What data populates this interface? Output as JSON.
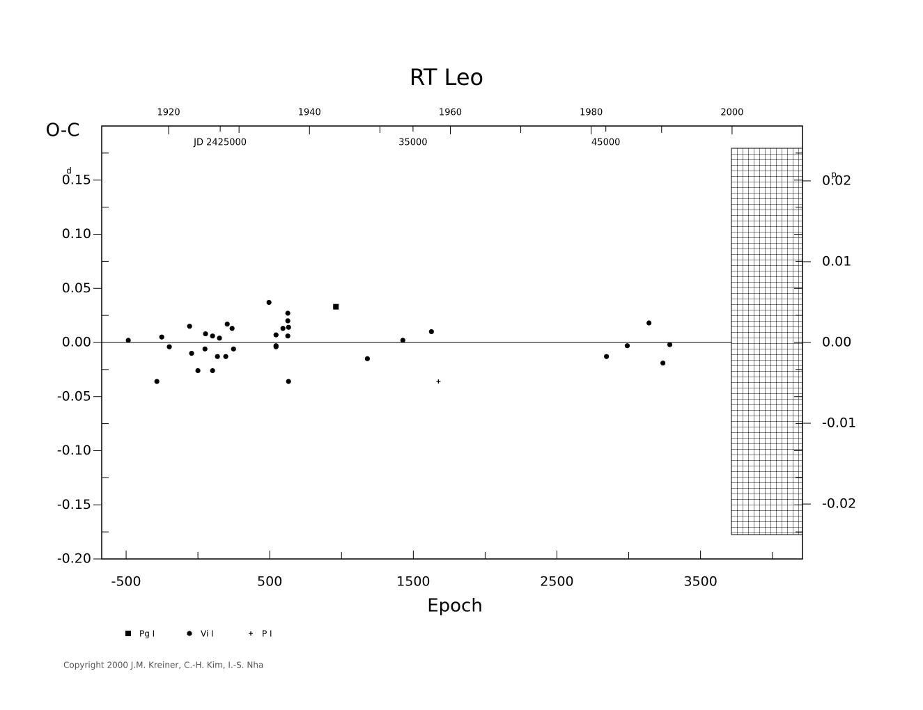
{
  "chart_data": {
    "type": "scatter",
    "title": "RT Leo",
    "x_label": "Epoch",
    "y_label": "O-C",
    "y_unit": "d",
    "y2_unit": "p",
    "xlim": [
      -670,
      4210
    ],
    "xticks": [
      {
        "value": -500,
        "label": "-500"
      },
      500,
      1500,
      2500,
      3500
    ],
    "xticks_minor": [
      0,
      1000,
      2000,
      3000,
      4000
    ],
    "ylim": [
      -0.2,
      0.2
    ],
    "yticks": [
      {
        "value": -0.2,
        "label": "-0.20"
      },
      {
        "value": -0.15,
        "label": "-0.15"
      },
      {
        "value": -0.1,
        "label": "-0.10"
      },
      {
        "value": -0.05,
        "label": "-0.05"
      },
      {
        "value": 0,
        "label": "0.00"
      },
      {
        "value": 0.05,
        "label": "0.05"
      },
      {
        "value": 0.1,
        "label": "0.10"
      },
      {
        "value": 0.15,
        "label": "0.15"
      }
    ],
    "yticks_minor": [
      -0.175,
      -0.125,
      -0.075,
      -0.025,
      0.025,
      0.075,
      0.125,
      0.175
    ],
    "y2lim": [
      -0.0268,
      0.0268
    ],
    "y2ticks": [
      {
        "value": -0.02,
        "label": "-0.02"
      },
      {
        "value": -0.01,
        "label": "-0.01"
      },
      {
        "value": 0,
        "label": "0.00"
      },
      {
        "value": 0.01,
        "label": "0.01"
      },
      {
        "value": 0.02,
        "label": "0.02"
      }
    ],
    "top_xlim": [
      1910.5,
      2010
    ],
    "top_ticks": [
      1920,
      1940,
      1960,
      1980,
      2000
    ],
    "top_ticks_minor": [
      1930,
      1950,
      1970,
      1990
    ],
    "jd_labels": [
      {
        "value": 2425000,
        "label": "JD 2425000"
      },
      {
        "value": 2435000,
        "label": "35000"
      },
      {
        "value": 2445000,
        "label": "45000"
      }
    ],
    "series": [
      {
        "name": "Pg I",
        "marker": "square",
        "color": "#000000",
        "x": [
          961
        ],
        "values": [
          0.033
        ]
      },
      {
        "name": "Vi I",
        "marker": "circle",
        "color": "#000000",
        "x": [
          -485,
          -286,
          -252,
          -199,
          -58,
          -44,
          0,
          49,
          53,
          102,
          102,
          136,
          150,
          194,
          204,
          238,
          248,
          495,
          544,
          544,
          544,
          592,
          626,
          626,
          626,
          631,
          631,
          1180,
          1427,
          1626,
          2845,
          2990,
          3141,
          3238,
          3286
        ],
        "values": [
          0.002,
          -0.036,
          0.005,
          -0.004,
          0.015,
          -0.01,
          -0.026,
          -0.006,
          0.008,
          0.006,
          -0.026,
          -0.013,
          0.004,
          -0.013,
          0.017,
          0.013,
          -0.006,
          0.037,
          0.007,
          -0.003,
          -0.004,
          0.013,
          0.027,
          0.02,
          0.006,
          0.014,
          -0.036,
          -0.015,
          0.002,
          0.01,
          -0.013,
          -0.003,
          0.018,
          -0.019,
          -0.002
        ]
      },
      {
        "name": "P I",
        "marker": "plus",
        "color": "#000000",
        "x": [
          1675
        ],
        "values": [
          -0.036
        ]
      }
    ],
    "copyright": "Copyright 2000 J.M. Kreiner, C.-H. Kim, I.-S. Nha"
  }
}
